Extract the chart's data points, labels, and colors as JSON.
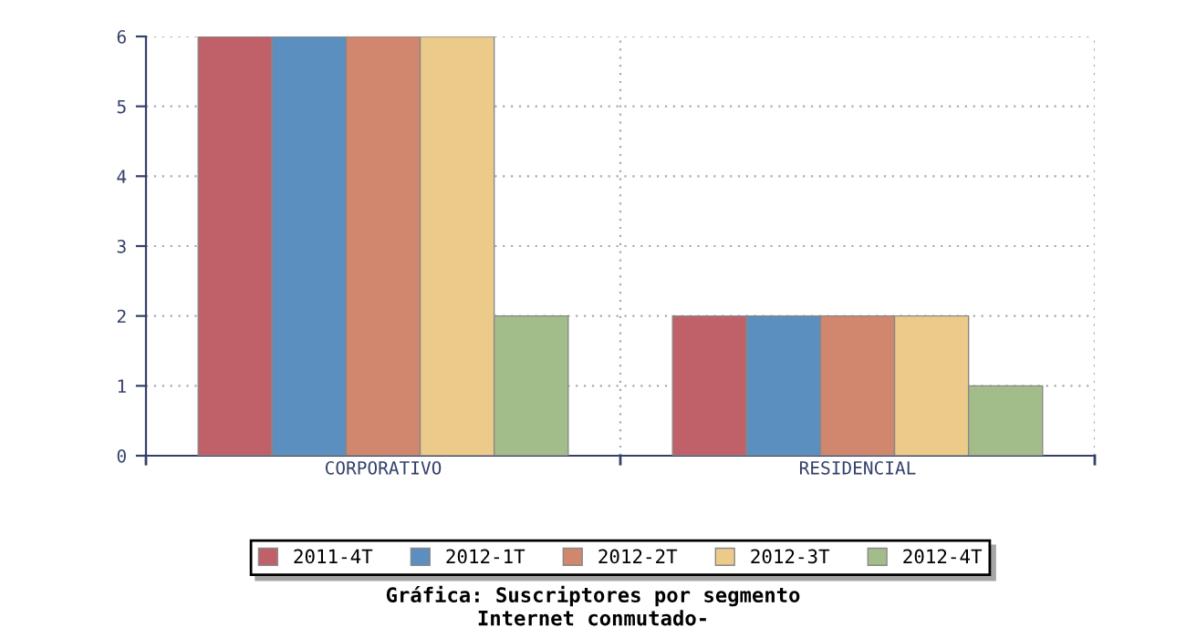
{
  "chart_data": {
    "type": "bar",
    "title": "Gráfica: Suscriptores por segmento",
    "subtitle": "Internet conmutado-",
    "categories": [
      "CORPORATIVO",
      "RESIDENCIAL"
    ],
    "series": [
      {
        "name": "2011-4T",
        "color": "#c0616a",
        "values": [
          6,
          2
        ]
      },
      {
        "name": "2012-1T",
        "color": "#5b8fbf",
        "values": [
          6,
          2
        ]
      },
      {
        "name": "2012-2T",
        "color": "#d0876e",
        "values": [
          6,
          2
        ]
      },
      {
        "name": "2012-3T",
        "color": "#eccb8a",
        "values": [
          6,
          2
        ]
      },
      {
        "name": "2012-4T",
        "color": "#a3bd8a",
        "values": [
          2,
          1
        ]
      }
    ],
    "ylim": [
      0,
      6
    ],
    "yticks": [
      0,
      1,
      2,
      3,
      4,
      5,
      6
    ],
    "grid": true,
    "legend": "bottom"
  }
}
